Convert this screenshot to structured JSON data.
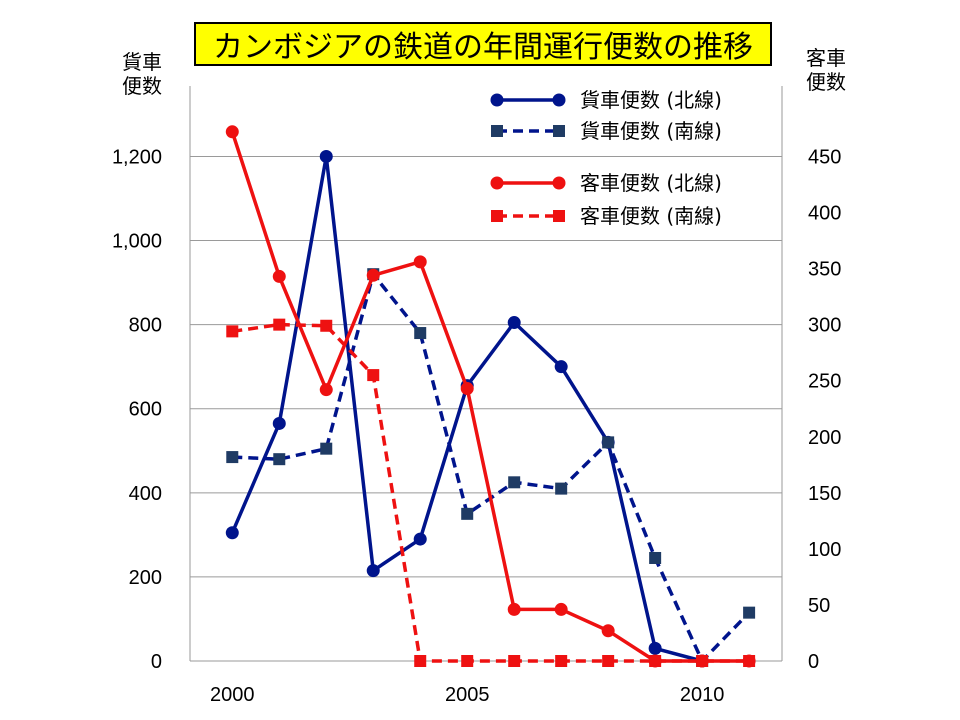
{
  "chart_data": {
    "type": "line",
    "title": "カンボジアの鉄道の年間運行便数の推移",
    "ylabel_left": [
      "貨車",
      "便数"
    ],
    "ylabel_right": [
      "客車",
      "便数"
    ],
    "xlim": [
      1999.1,
      2011.7
    ],
    "ylim_left": [
      0,
      1320
    ],
    "ylim_right": [
      0,
      495
    ],
    "x_ticks": [
      2000,
      2005,
      2010
    ],
    "y_ticks_left": [
      0,
      200,
      400,
      600,
      800,
      1000,
      1200
    ],
    "y_ticks_left_labels": [
      "0",
      "200",
      "400",
      "600",
      "800",
      "1,000",
      "1,200"
    ],
    "y_ticks_right": [
      0,
      50,
      100,
      150,
      200,
      250,
      300,
      350,
      400,
      450
    ],
    "y_ticks_right_labels": [
      "0",
      "50",
      "100",
      "150",
      "200",
      "250",
      "300",
      "350",
      "400",
      "450"
    ],
    "grid": "horizontal",
    "legend_position": "top-right",
    "series": [
      {
        "name": "貨車便数  (北線)",
        "axis": "left",
        "color": "#00148c",
        "dash": "solid",
        "marker": "circle",
        "x": [
          2000,
          2001,
          2002,
          2003,
          2004,
          2005,
          2006,
          2007,
          2008,
          2009,
          2010
        ],
        "y": [
          305,
          565,
          1200,
          215,
          290,
          655,
          805,
          700,
          520,
          30,
          0
        ]
      },
      {
        "name": "貨車便数  (南線)",
        "axis": "left",
        "color": "#00148c",
        "marker_color": "#1f3b64",
        "dash": "dashed",
        "marker": "square",
        "x": [
          2000,
          2001,
          2002,
          2003,
          2004,
          2005,
          2006,
          2007,
          2008,
          2009,
          2010,
          2011
        ],
        "y": [
          485,
          480,
          505,
          920,
          780,
          350,
          425,
          410,
          520,
          245,
          0,
          115
        ]
      },
      {
        "name": "客車便数  (北線)",
        "axis": "right",
        "color": "#ee1111",
        "dash": "solid",
        "marker": "circle",
        "x": [
          2000,
          2001,
          2002,
          2003,
          2004,
          2005,
          2006,
          2007,
          2008,
          2009,
          2010,
          2011
        ],
        "y": [
          472,
          343,
          242,
          344,
          356,
          243,
          46,
          46,
          27,
          0,
          0,
          0
        ]
      },
      {
        "name": "客車便数  (南線)",
        "axis": "right",
        "color": "#ee1111",
        "dash": "dashed",
        "marker": "square",
        "x": [
          2000,
          2001,
          2002,
          2003,
          2004,
          2005,
          2006,
          2007,
          2008,
          2009,
          2010,
          2011
        ],
        "y": [
          294,
          300,
          299,
          255,
          0,
          0,
          0,
          0,
          0,
          0,
          0,
          0
        ]
      }
    ]
  }
}
